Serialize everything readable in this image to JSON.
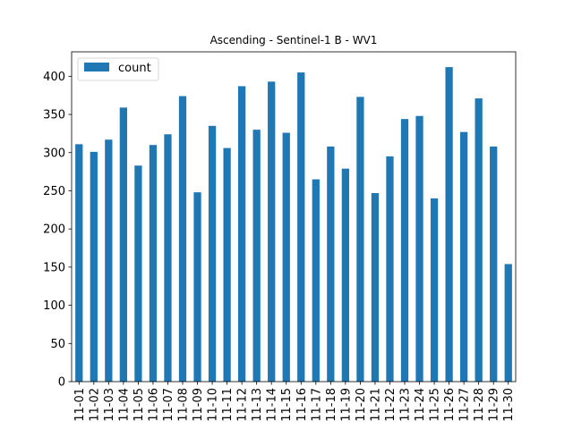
{
  "chart_data": {
    "type": "bar",
    "title": "Ascending - Sentinel-1 B - WV1",
    "xlabel": "",
    "ylabel": "",
    "legend": {
      "placement": "top-left",
      "entries": [
        "count"
      ]
    },
    "grid": false,
    "ylim": [
      0,
      432
    ],
    "yticks": [
      0,
      50,
      100,
      150,
      200,
      250,
      300,
      350,
      400
    ],
    "categories": [
      "11-01",
      "11-02",
      "11-03",
      "11-04",
      "11-05",
      "11-06",
      "11-07",
      "11-08",
      "11-09",
      "11-10",
      "11-11",
      "11-12",
      "11-13",
      "11-14",
      "11-15",
      "11-16",
      "11-17",
      "11-18",
      "11-19",
      "11-20",
      "11-21",
      "11-22",
      "11-23",
      "11-24",
      "11-25",
      "11-26",
      "11-27",
      "11-28",
      "11-29",
      "11-30"
    ],
    "series": [
      {
        "name": "count",
        "color": "#1f77b4",
        "values": [
          311,
          301,
          317,
          359,
          283,
          310,
          324,
          374,
          248,
          335,
          306,
          387,
          330,
          393,
          326,
          405,
          265,
          308,
          279,
          373,
          247,
          295,
          344,
          348,
          240,
          412,
          327,
          371,
          308,
          154
        ]
      }
    ]
  }
}
